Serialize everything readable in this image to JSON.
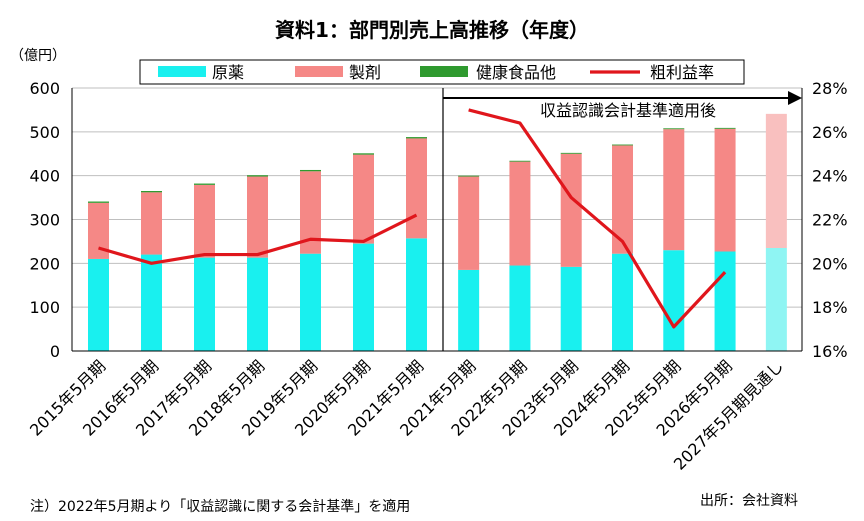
{
  "title": "資料1：部門別売上高推移（年度）",
  "note": "注）2022年5月期より「収益認識に関する会計基準」を適用",
  "source": "出所：会社資料",
  "annotation": "収益認識会計基準適用後",
  "colors": {
    "genyaku": "#19f0ef",
    "seizai": "#f58886",
    "kenko": "#2f9a2f",
    "margin": "#e0161c",
    "forecast_genyaku": "#8ff5f3",
    "forecast_seizai": "#f9c0bf"
  },
  "chart_data": {
    "type": "bar",
    "stacked": true,
    "unit_left": "（億円）",
    "left_axis": {
      "ylim": [
        0,
        600
      ],
      "ticks": [
        "0",
        "100",
        "200",
        "300",
        "400",
        "500",
        "600"
      ]
    },
    "right_axis": {
      "ylim": [
        16,
        28
      ],
      "ticks": [
        "16%",
        "18%",
        "20%",
        "22%",
        "24%",
        "26%",
        "28%"
      ]
    },
    "groups": [
      {
        "categories": [
          "2015年5月期",
          "2016年5月期",
          "2017年5月期",
          "2018年5月期",
          "2019年5月期",
          "2020年5月期",
          "2021年5月期"
        ]
      },
      {
        "categories": [
          "2021年5月期",
          "2022年5月期",
          "2023年5月期",
          "2024年5月期",
          "2025年5月期",
          "2026年5月期",
          "2027年5月期見通し"
        ]
      }
    ],
    "legend": [
      "原薬",
      "製剤",
      "健康食品他",
      "粗利益率"
    ],
    "series": [
      {
        "name": "原薬",
        "axis": "left",
        "group1": [
          210,
          220,
          213,
          213,
          222,
          245,
          257
        ],
        "group2": [
          185,
          195,
          192,
          222,
          230,
          227,
          235
        ]
      },
      {
        "name": "製剤",
        "axis": "left",
        "group1": [
          128,
          142,
          166,
          185,
          188,
          203,
          228
        ],
        "group2": [
          213,
          237,
          258,
          247,
          276,
          280,
          306
        ]
      },
      {
        "name": "健康食品他",
        "axis": "left",
        "group1": [
          3,
          3,
          3,
          3,
          3,
          3,
          3
        ],
        "group2": [
          2,
          2,
          2,
          2,
          2,
          2,
          0
        ]
      },
      {
        "name": "粗利益率",
        "axis": "right",
        "type": "line",
        "group1": [
          20.7,
          20.0,
          20.4,
          20.4,
          21.1,
          21.0,
          22.2
        ],
        "group2": [
          27.0,
          26.4,
          23.0,
          21.0,
          17.1,
          19.6,
          null
        ]
      }
    ]
  }
}
